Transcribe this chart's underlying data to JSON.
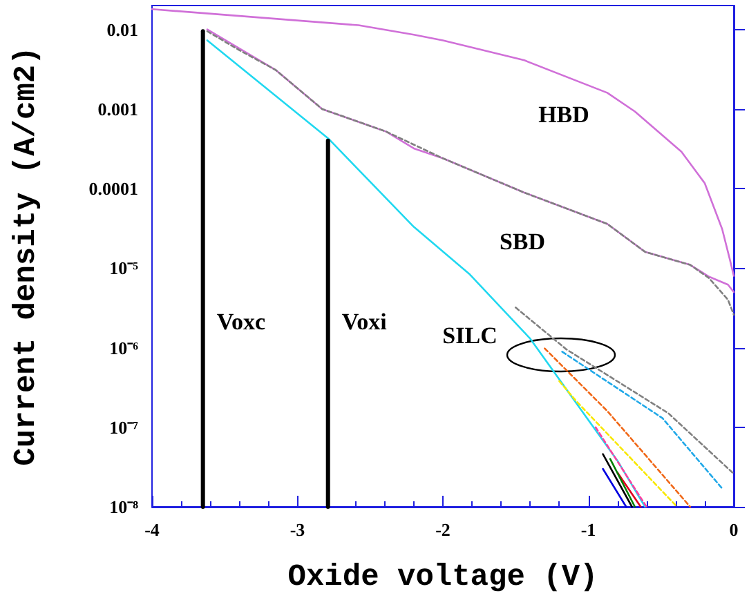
{
  "chart_data": {
    "type": "line",
    "xlabel": "Oxide voltage (V)",
    "ylabel": "Current density (A/cm2)",
    "log": "y",
    "grid": false,
    "legend": false,
    "marker": "none",
    "xlim": [
      -4,
      0
    ],
    "xticks": [
      -4,
      -3,
      -2,
      -1,
      0
    ],
    "ylim": [
      1e-08,
      0.02
    ],
    "yticks": [
      {
        "value": 1e-08,
        "label": "10⁻⁸"
      },
      {
        "value": 1e-07,
        "label": "10⁻⁷"
      },
      {
        "value": 1e-06,
        "label": "10⁻⁶"
      },
      {
        "value": 1e-05,
        "label": "10⁻⁵"
      },
      0.0001,
      0.001,
      0.01
    ],
    "annotations": [
      "HBD",
      "SBD",
      "SILC"
    ],
    "series": [
      {
        "color": "#d070d8",
        "line_style": "solid",
        "x": [
          -4,
          -2.58,
          -2.2,
          -2.0,
          -1.44,
          -0.87,
          -0.68,
          -0.36,
          -0.2,
          -0.08,
          -0.03,
          0
        ],
        "values": [
          0.018,
          0.0113,
          0.0086,
          0.0073,
          0.0041,
          0.0016,
          0.00093,
          0.00029,
          0.000117,
          3.1e-05,
          1.35e-05,
          8e-06
        ]
      },
      {
        "color": "#d070d8",
        "line_style": "solid",
        "x": [
          -3.62,
          -3.15,
          -2.83,
          -2.58,
          -2.39,
          -2.2,
          -2.0,
          -1.44,
          -0.87,
          -0.61,
          -0.3,
          -0.17,
          -0.04,
          0
        ],
        "values": [
          0.01,
          0.0031,
          0.001,
          0.00069,
          0.00052,
          0.00032,
          0.00024,
          8.9e-05,
          3.6e-05,
          1.6e-05,
          1.1e-05,
          7.8e-06,
          6.2e-06,
          5e-06
        ]
      },
      {
        "color": "#808080",
        "line_style": "dashed",
        "x": [
          -3.62,
          -3.4,
          -3.15,
          -2.83,
          -2.39,
          -2.0,
          -1.44,
          -0.87,
          -0.61,
          -0.3,
          -0.17,
          -0.04,
          0
        ],
        "values": [
          0.0095,
          0.0055,
          0.0031,
          0.001,
          0.00052,
          0.00024,
          8.9e-05,
          3.6e-05,
          1.6e-05,
          1.1e-05,
          7.5e-06,
          4e-06,
          2.6e-06
        ]
      },
      {
        "color": "#20d8f0",
        "line_style": "solid",
        "x": [
          -3.62,
          -2.79,
          -2.2,
          -1.82,
          -1.4,
          -0.8,
          -0.61
        ],
        "values": [
          0.0073,
          0.00043,
          3.3e-05,
          8.5e-06,
          1.3e-06,
          3.8e-08,
          1e-08
        ]
      },
      {
        "color": "#000000",
        "line_style": "solid",
        "x": [
          -0.9,
          -0.7
        ],
        "values": [
          4.6e-08,
          1e-08
        ]
      },
      {
        "color": "#0000e0",
        "line_style": "solid",
        "x": [
          -0.9,
          -0.74
        ],
        "values": [
          3e-08,
          1e-08
        ]
      },
      {
        "color": "#e00020",
        "line_style": "solid",
        "x": [
          -0.8,
          -0.64
        ],
        "values": [
          2.7e-08,
          1e-08
        ]
      },
      {
        "color": "#008000",
        "line_style": "solid",
        "x": [
          -0.85,
          -0.68
        ],
        "values": [
          4e-08,
          1e-08
        ]
      },
      {
        "color": "#ff40a0",
        "line_style": "dashed",
        "x": [
          -0.95,
          -0.6
        ],
        "values": [
          1e-07,
          1e-08
        ]
      },
      {
        "color": "#f8e800",
        "line_style": "dashed",
        "x": [
          -1.2,
          -1.08,
          -0.39
        ],
        "values": [
          3.8e-07,
          2.1e-07,
          1e-08
        ]
      },
      {
        "color": "#f06818",
        "line_style": "dashed",
        "x": [
          -1.3,
          -0.87,
          -0.3
        ],
        "values": [
          9.8e-07,
          1.6e-07,
          1e-08
        ]
      },
      {
        "color": "#20a8e8",
        "line_style": "dashed",
        "x": [
          -1.18,
          -0.49,
          -0.08
        ],
        "values": [
          8.9e-07,
          1.3e-07,
          1.7e-08
        ]
      },
      {
        "color": "#808080",
        "line_style": "dashed",
        "x": [
          -1.5,
          -1.15,
          -0.45,
          0
        ],
        "values": [
          3.2e-06,
          9.5e-07,
          1.5e-07,
          2.6e-08
        ]
      },
      {
        "name": "Voxc",
        "color": "#000000",
        "line_style": "solid",
        "x": [
          -3.65,
          -3.65
        ],
        "values": [
          1e-08,
          0.0095
        ]
      },
      {
        "name": "Voxi",
        "color": "#000000",
        "line_style": "solid",
        "x": [
          -2.79,
          -2.79
        ],
        "values": [
          1e-08,
          0.0004
        ]
      }
    ]
  }
}
